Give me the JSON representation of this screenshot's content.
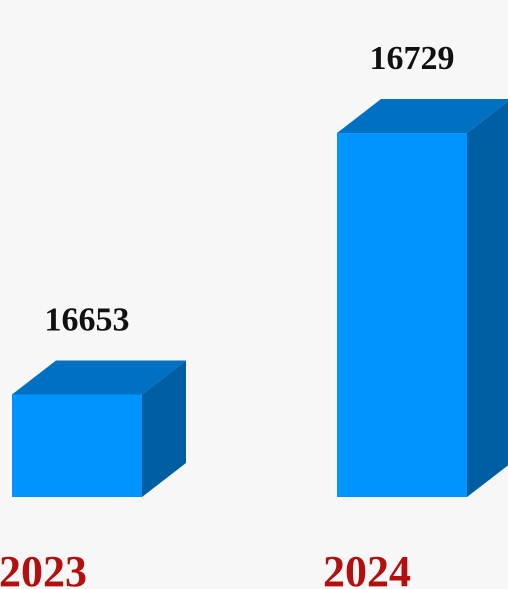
{
  "chart_data": {
    "type": "bar",
    "style": "3d-column",
    "categories": [
      "2023",
      "2024"
    ],
    "values": [
      16653,
      16729
    ],
    "data_labels": [
      "16653",
      "16729"
    ],
    "title": "",
    "xlabel": "",
    "ylabel": "",
    "grid": false,
    "legend": "none",
    "colors": {
      "bar_front": "#0094ff",
      "bar_top": "#0071c2",
      "bar_side": "#005fa3",
      "value_label": "#111111",
      "category_label": "#b30f0f",
      "background": "#f7f7f7"
    }
  }
}
